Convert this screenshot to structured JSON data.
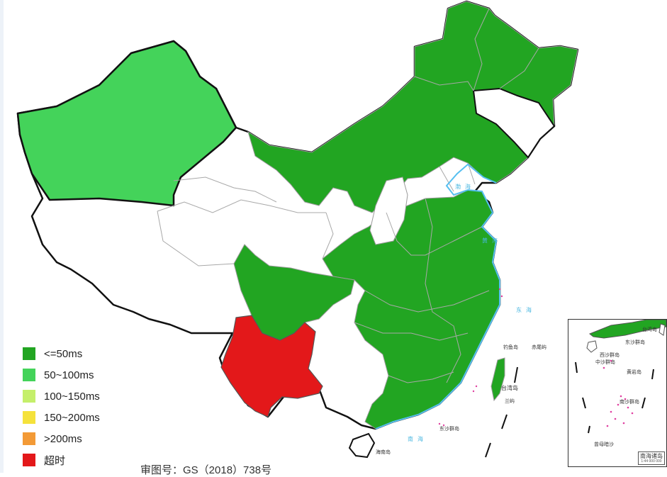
{
  "legend": {
    "items": [
      {
        "label": "<=50ms",
        "color": "#22a522"
      },
      {
        "label": "50~100ms",
        "color": "#44d35a"
      },
      {
        "label": "100~150ms",
        "color": "#c5ef6b"
      },
      {
        "label": "150~200ms",
        "color": "#f5e23b"
      },
      {
        "label": ">200ms",
        "color": "#f39a36"
      },
      {
        "label": "超时",
        "color": "#e3181a"
      }
    ]
  },
  "map": {
    "approval_number": "审图号：GS（2018）738号",
    "region_colors": {
      "latency_le_50": "#22a522",
      "latency_50_100": "#44d35a",
      "timeout": "#e3181a",
      "no_data": "#ffffff",
      "border": "#111111",
      "province_border": "#b0b0b0",
      "sea_label": "#4ab7e0"
    },
    "labels": {
      "bohai": "渤海",
      "yellow_sea": "黄海",
      "east_sea": "东海",
      "south_sea": "南海",
      "taiwan": "台湾岛",
      "diaoyu": "钓鱼岛",
      "chiwei": "赤尾屿",
      "lanyu": "兰屿",
      "dongsha": "东沙群岛",
      "hainan": "海南岛"
    }
  },
  "inset": {
    "caption": "南海诸岛",
    "scale": "1:44 000 000",
    "labels": {
      "taiwan": "台湾岛",
      "dongsha": "东沙群岛",
      "xisha": "西沙群岛",
      "zhongsha": "中沙群岛",
      "huangyan": "黄岩岛",
      "nansha": "南沙群岛",
      "zengmu": "曾母暗沙"
    }
  }
}
